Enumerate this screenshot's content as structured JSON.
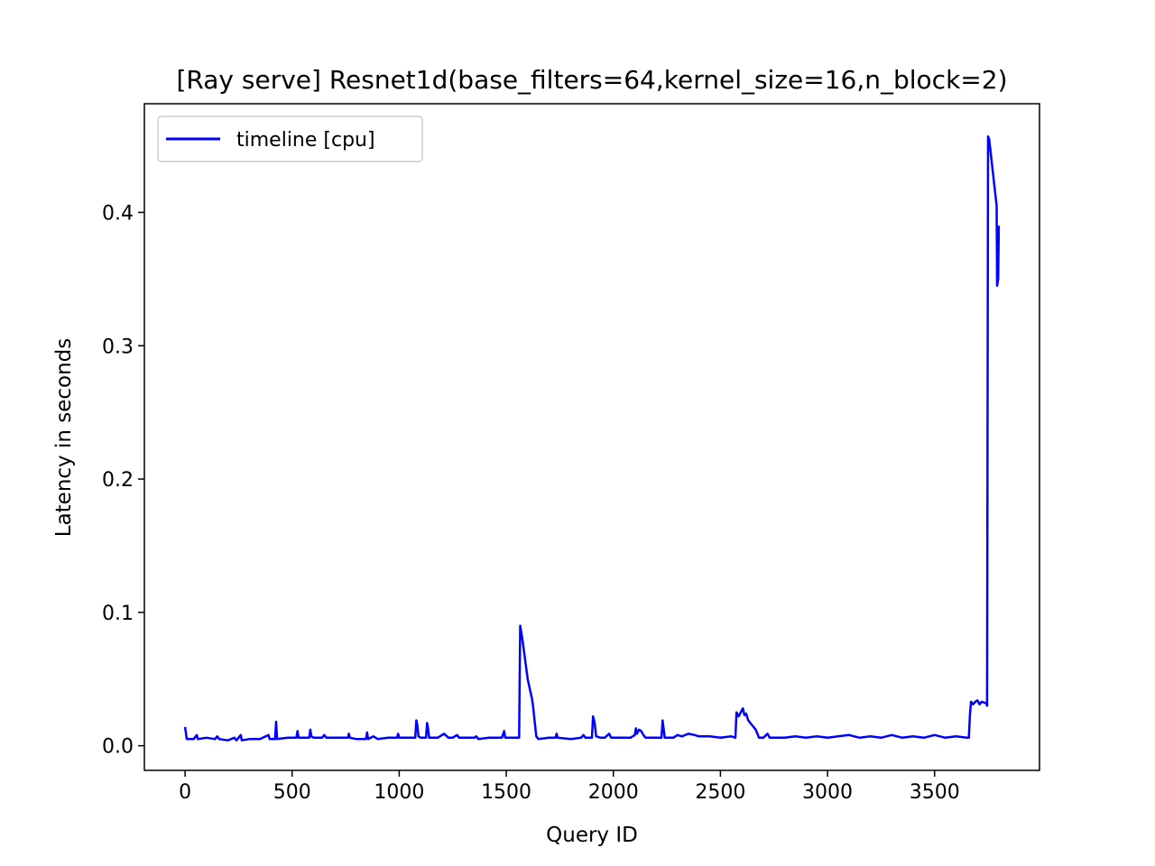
{
  "chart_data": {
    "type": "line",
    "title": "[Ray serve] Resnet1d(base_filters=64,kernel_size=16,n_block=2)",
    "xlabel": "Query ID",
    "ylabel": "Latency in seconds",
    "xlim": [
      -190,
      3990
    ],
    "ylim": [
      -0.0185,
      0.4815
    ],
    "xticks": [
      0,
      500,
      1000,
      1500,
      2000,
      2500,
      3000,
      3500
    ],
    "yticks": [
      0.0,
      0.1,
      0.2,
      0.3,
      0.4
    ],
    "xtick_labels": [
      "0",
      "500",
      "1000",
      "1500",
      "2000",
      "2500",
      "3000",
      "3500"
    ],
    "ytick_labels": [
      "0.0",
      "0.1",
      "0.2",
      "0.3",
      "0.4"
    ],
    "grid": false,
    "legend": {
      "position": "upper-left",
      "entries": [
        "timeline [cpu]"
      ]
    },
    "series": [
      {
        "name": "timeline [cpu]",
        "color": "#0000ff",
        "points": [
          [
            0,
            0.014
          ],
          [
            8,
            0.005
          ],
          [
            40,
            0.005
          ],
          [
            55,
            0.008
          ],
          [
            60,
            0.005
          ],
          [
            100,
            0.006
          ],
          [
            140,
            0.005
          ],
          [
            150,
            0.007
          ],
          [
            160,
            0.005
          ],
          [
            200,
            0.004
          ],
          [
            230,
            0.006
          ],
          [
            240,
            0.004
          ],
          [
            260,
            0.008
          ],
          [
            265,
            0.004
          ],
          [
            300,
            0.005
          ],
          [
            350,
            0.005
          ],
          [
            390,
            0.008
          ],
          [
            395,
            0.005
          ],
          [
            420,
            0.005
          ],
          [
            425,
            0.018
          ],
          [
            430,
            0.005
          ],
          [
            480,
            0.006
          ],
          [
            520,
            0.006
          ],
          [
            525,
            0.011
          ],
          [
            530,
            0.006
          ],
          [
            580,
            0.006
          ],
          [
            585,
            0.012
          ],
          [
            590,
            0.007
          ],
          [
            600,
            0.006
          ],
          [
            640,
            0.006
          ],
          [
            650,
            0.008
          ],
          [
            660,
            0.006
          ],
          [
            700,
            0.006
          ],
          [
            760,
            0.006
          ],
          [
            765,
            0.009
          ],
          [
            770,
            0.006
          ],
          [
            800,
            0.005
          ],
          [
            845,
            0.005
          ],
          [
            850,
            0.01
          ],
          [
            855,
            0.005
          ],
          [
            880,
            0.007
          ],
          [
            900,
            0.005
          ],
          [
            950,
            0.006
          ],
          [
            990,
            0.006
          ],
          [
            995,
            0.009
          ],
          [
            1000,
            0.006
          ],
          [
            1050,
            0.006
          ],
          [
            1075,
            0.006
          ],
          [
            1080,
            0.019
          ],
          [
            1085,
            0.015
          ],
          [
            1090,
            0.007
          ],
          [
            1100,
            0.006
          ],
          [
            1125,
            0.006
          ],
          [
            1130,
            0.017
          ],
          [
            1135,
            0.013
          ],
          [
            1140,
            0.006
          ],
          [
            1180,
            0.006
          ],
          [
            1200,
            0.008
          ],
          [
            1210,
            0.009
          ],
          [
            1230,
            0.006
          ],
          [
            1250,
            0.006
          ],
          [
            1270,
            0.008
          ],
          [
            1280,
            0.006
          ],
          [
            1350,
            0.006
          ],
          [
            1360,
            0.007
          ],
          [
            1370,
            0.005
          ],
          [
            1420,
            0.006
          ],
          [
            1480,
            0.006
          ],
          [
            1490,
            0.011
          ],
          [
            1495,
            0.006
          ],
          [
            1560,
            0.006
          ],
          [
            1565,
            0.09
          ],
          [
            1575,
            0.08
          ],
          [
            1600,
            0.05
          ],
          [
            1620,
            0.035
          ],
          [
            1625,
            0.03
          ],
          [
            1640,
            0.007
          ],
          [
            1650,
            0.005
          ],
          [
            1700,
            0.006
          ],
          [
            1730,
            0.006
          ],
          [
            1735,
            0.009
          ],
          [
            1740,
            0.006
          ],
          [
            1800,
            0.005
          ],
          [
            1850,
            0.006
          ],
          [
            1860,
            0.008
          ],
          [
            1870,
            0.006
          ],
          [
            1900,
            0.006
          ],
          [
            1905,
            0.022
          ],
          [
            1912,
            0.018
          ],
          [
            1920,
            0.007
          ],
          [
            1940,
            0.006
          ],
          [
            1960,
            0.006
          ],
          [
            1980,
            0.009
          ],
          [
            1990,
            0.006
          ],
          [
            2040,
            0.006
          ],
          [
            2080,
            0.006
          ],
          [
            2100,
            0.008
          ],
          [
            2105,
            0.013
          ],
          [
            2110,
            0.009
          ],
          [
            2120,
            0.012
          ],
          [
            2130,
            0.011
          ],
          [
            2140,
            0.008
          ],
          [
            2150,
            0.006
          ],
          [
            2200,
            0.006
          ],
          [
            2225,
            0.006
          ],
          [
            2230,
            0.019
          ],
          [
            2240,
            0.006
          ],
          [
            2280,
            0.006
          ],
          [
            2300,
            0.008
          ],
          [
            2320,
            0.007
          ],
          [
            2350,
            0.009
          ],
          [
            2380,
            0.008
          ],
          [
            2400,
            0.007
          ],
          [
            2450,
            0.007
          ],
          [
            2500,
            0.006
          ],
          [
            2550,
            0.007
          ],
          [
            2570,
            0.006
          ],
          [
            2575,
            0.025
          ],
          [
            2585,
            0.022
          ],
          [
            2595,
            0.025
          ],
          [
            2605,
            0.028
          ],
          [
            2612,
            0.023
          ],
          [
            2620,
            0.024
          ],
          [
            2630,
            0.019
          ],
          [
            2650,
            0.015
          ],
          [
            2665,
            0.012
          ],
          [
            2680,
            0.006
          ],
          [
            2700,
            0.006
          ],
          [
            2720,
            0.009
          ],
          [
            2730,
            0.006
          ],
          [
            2800,
            0.006
          ],
          [
            2850,
            0.007
          ],
          [
            2900,
            0.006
          ],
          [
            2950,
            0.007
          ],
          [
            3000,
            0.006
          ],
          [
            3050,
            0.007
          ],
          [
            3100,
            0.008
          ],
          [
            3150,
            0.006
          ],
          [
            3200,
            0.007
          ],
          [
            3250,
            0.006
          ],
          [
            3300,
            0.008
          ],
          [
            3350,
            0.006
          ],
          [
            3400,
            0.007
          ],
          [
            3450,
            0.006
          ],
          [
            3500,
            0.008
          ],
          [
            3550,
            0.006
          ],
          [
            3600,
            0.007
          ],
          [
            3650,
            0.006
          ],
          [
            3660,
            0.006
          ],
          [
            3665,
            0.023
          ],
          [
            3670,
            0.033
          ],
          [
            3680,
            0.031
          ],
          [
            3690,
            0.033
          ],
          [
            3700,
            0.034
          ],
          [
            3710,
            0.031
          ],
          [
            3720,
            0.033
          ],
          [
            3740,
            0.032
          ],
          [
            3745,
            0.03
          ],
          [
            3750,
            0.457
          ],
          [
            3755,
            0.455
          ],
          [
            3790,
            0.405
          ],
          [
            3792,
            0.345
          ],
          [
            3797,
            0.35
          ],
          [
            3800,
            0.39
          ]
        ]
      }
    ]
  }
}
